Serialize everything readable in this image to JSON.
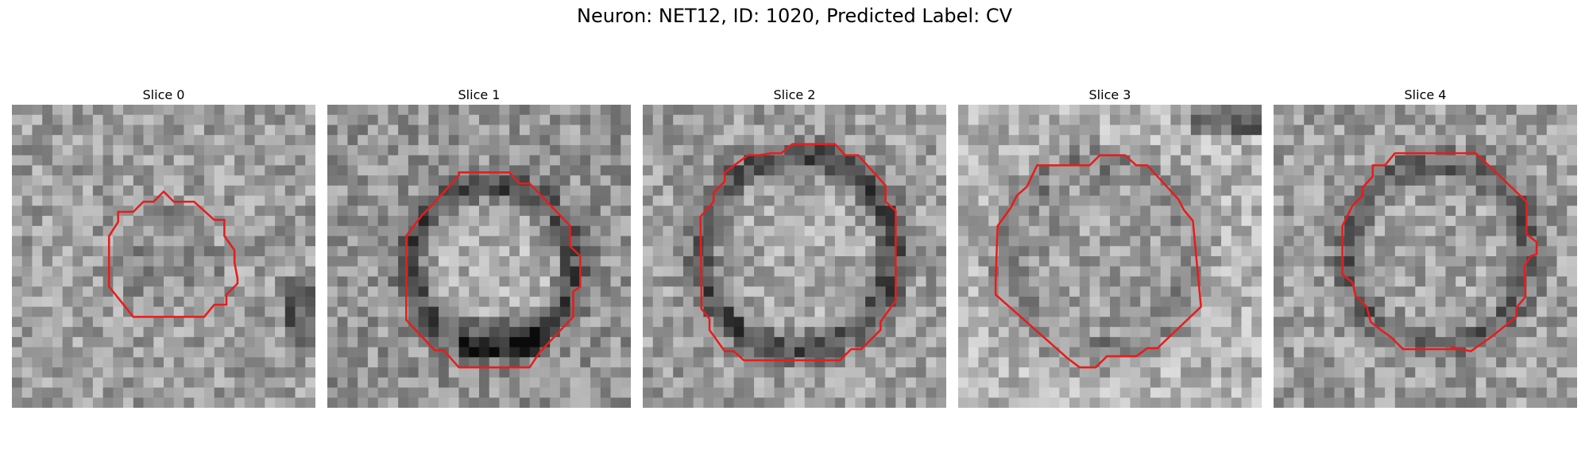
{
  "figure": {
    "title": "Neuron: NET12, ID: 1020, Predicted Label: CV",
    "contour_color": "#e81c1c"
  },
  "panels": [
    {
      "label": "Slice 0"
    },
    {
      "label": "Slice 1"
    },
    {
      "label": "Slice 2"
    },
    {
      "label": "Slice 3"
    },
    {
      "label": "Slice 4"
    }
  ]
}
